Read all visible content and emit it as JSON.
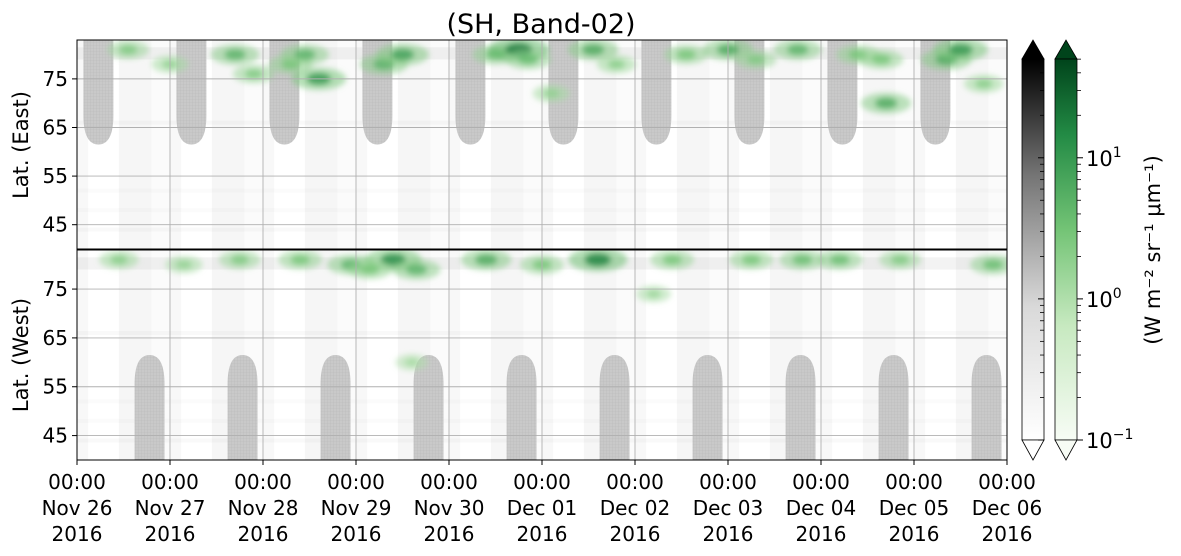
{
  "chart_data": {
    "type": "heatmap",
    "title": "(SH, Band-02)",
    "x_ticks": [
      {
        "time": "00:00",
        "date": "Nov 26",
        "year": "2016"
      },
      {
        "time": "00:00",
        "date": "Nov 27",
        "year": "2016"
      },
      {
        "time": "00:00",
        "date": "Nov 28",
        "year": "2016"
      },
      {
        "time": "00:00",
        "date": "Nov 29",
        "year": "2016"
      },
      {
        "time": "00:00",
        "date": "Nov 30",
        "year": "2016"
      },
      {
        "time": "00:00",
        "date": "Dec 01",
        "year": "2016"
      },
      {
        "time": "00:00",
        "date": "Dec 02",
        "year": "2016"
      },
      {
        "time": "00:00",
        "date": "Dec 03",
        "year": "2016"
      },
      {
        "time": "00:00",
        "date": "Dec 04",
        "year": "2016"
      },
      {
        "time": "00:00",
        "date": "Dec 05",
        "year": "2016"
      },
      {
        "time": "00:00",
        "date": "Dec 06",
        "year": "2016"
      }
    ],
    "xlim": [
      "2016-11-26T00:00",
      "2016-12-06T00:00"
    ],
    "east_panel": {
      "ylabel": "Lat. (East)",
      "yticks": [
        "45",
        "55",
        "65",
        "75"
      ],
      "ylim_deg": [
        40,
        83
      ]
    },
    "west_panel": {
      "ylabel": "Lat. (West)",
      "yticks": [
        "75",
        "65",
        "55",
        "45"
      ],
      "ylim_deg": [
        83,
        40
      ]
    },
    "colorbar_gray": {
      "extend": "both",
      "scale": "log"
    },
    "colorbar_green": {
      "extend": "both",
      "scale": "log",
      "ticks": [
        "10",
        "10",
        "10"
      ],
      "tick_exponents": [
        "1",
        "0",
        "−1"
      ],
      "tick_values": [
        10,
        1,
        0.1
      ],
      "label": "(W m⁻² sr⁻¹ μm⁻¹)"
    },
    "colors": {
      "grid": "#b0b0b0",
      "mask": "#c9c9c9",
      "green_high": "#00441b",
      "green_mid": "#41ab5d",
      "green_low": "#f7fcf5",
      "gray_high": "#000000",
      "gray_low": "#ffffff"
    },
    "grid": true,
    "green_events": [
      {
        "day": 0.55,
        "lat": 81,
        "panel": "east",
        "intensity": 0.4
      },
      {
        "day": 0.45,
        "lat": 81,
        "panel": "west",
        "intensity": 0.35
      },
      {
        "day": 1.0,
        "lat": 78,
        "panel": "east",
        "intensity": 0.3
      },
      {
        "day": 1.15,
        "lat": 80,
        "panel": "west",
        "intensity": 0.3
      },
      {
        "day": 1.7,
        "lat": 80,
        "panel": "east",
        "intensity": 0.55
      },
      {
        "day": 1.9,
        "lat": 76,
        "panel": "east",
        "intensity": 0.4
      },
      {
        "day": 1.75,
        "lat": 81,
        "panel": "west",
        "intensity": 0.4
      },
      {
        "day": 2.3,
        "lat": 78,
        "panel": "east",
        "intensity": 0.45
      },
      {
        "day": 2.45,
        "lat": 80,
        "panel": "east",
        "intensity": 0.55
      },
      {
        "day": 2.6,
        "lat": 75,
        "panel": "east",
        "intensity": 0.7
      },
      {
        "day": 2.4,
        "lat": 81,
        "panel": "west",
        "intensity": 0.45
      },
      {
        "day": 2.95,
        "lat": 80,
        "panel": "west",
        "intensity": 0.55
      },
      {
        "day": 3.3,
        "lat": 78,
        "panel": "east",
        "intensity": 0.55
      },
      {
        "day": 3.5,
        "lat": 80,
        "panel": "east",
        "intensity": 0.65
      },
      {
        "day": 3.4,
        "lat": 81,
        "panel": "west",
        "intensity": 0.75
      },
      {
        "day": 3.15,
        "lat": 79,
        "panel": "west",
        "intensity": 0.45
      },
      {
        "day": 3.65,
        "lat": 79,
        "panel": "west",
        "intensity": 0.55
      },
      {
        "day": 3.6,
        "lat": 60,
        "panel": "west",
        "intensity": 0.2
      },
      {
        "day": 4.5,
        "lat": 80,
        "panel": "east",
        "intensity": 0.5
      },
      {
        "day": 4.4,
        "lat": 81,
        "panel": "west",
        "intensity": 0.6
      },
      {
        "day": 4.75,
        "lat": 81,
        "panel": "east",
        "intensity": 0.85
      },
      {
        "day": 4.85,
        "lat": 79,
        "panel": "east",
        "intensity": 0.5
      },
      {
        "day": 5.0,
        "lat": 80,
        "panel": "west",
        "intensity": 0.45
      },
      {
        "day": 5.1,
        "lat": 72,
        "panel": "east",
        "intensity": 0.3
      },
      {
        "day": 5.55,
        "lat": 81,
        "panel": "east",
        "intensity": 0.6
      },
      {
        "day": 5.6,
        "lat": 81,
        "panel": "west",
        "intensity": 0.8
      },
      {
        "day": 5.8,
        "lat": 78,
        "panel": "east",
        "intensity": 0.35
      },
      {
        "day": 6.4,
        "lat": 81,
        "panel": "west",
        "intensity": 0.45
      },
      {
        "day": 6.55,
        "lat": 80,
        "panel": "east",
        "intensity": 0.45
      },
      {
        "day": 6.2,
        "lat": 74,
        "panel": "west",
        "intensity": 0.25
      },
      {
        "day": 7.0,
        "lat": 81,
        "panel": "east",
        "intensity": 0.6
      },
      {
        "day": 7.3,
        "lat": 79,
        "panel": "east",
        "intensity": 0.4
      },
      {
        "day": 7.25,
        "lat": 81,
        "panel": "west",
        "intensity": 0.45
      },
      {
        "day": 7.75,
        "lat": 81,
        "panel": "east",
        "intensity": 0.55
      },
      {
        "day": 7.8,
        "lat": 81,
        "panel": "west",
        "intensity": 0.5
      },
      {
        "day": 8.2,
        "lat": 81,
        "panel": "west",
        "intensity": 0.5
      },
      {
        "day": 8.4,
        "lat": 80,
        "panel": "east",
        "intensity": 0.45
      },
      {
        "day": 8.7,
        "lat": 70,
        "panel": "east",
        "intensity": 0.6
      },
      {
        "day": 8.65,
        "lat": 79,
        "panel": "east",
        "intensity": 0.45
      },
      {
        "day": 8.85,
        "lat": 81,
        "panel": "west",
        "intensity": 0.4
      },
      {
        "day": 9.35,
        "lat": 79,
        "panel": "east",
        "intensity": 0.6
      },
      {
        "day": 9.5,
        "lat": 81,
        "panel": "east",
        "intensity": 0.7
      },
      {
        "day": 9.75,
        "lat": 74,
        "panel": "east",
        "intensity": 0.35
      },
      {
        "day": 9.85,
        "lat": 80,
        "panel": "west",
        "intensity": 0.5
      }
    ]
  }
}
